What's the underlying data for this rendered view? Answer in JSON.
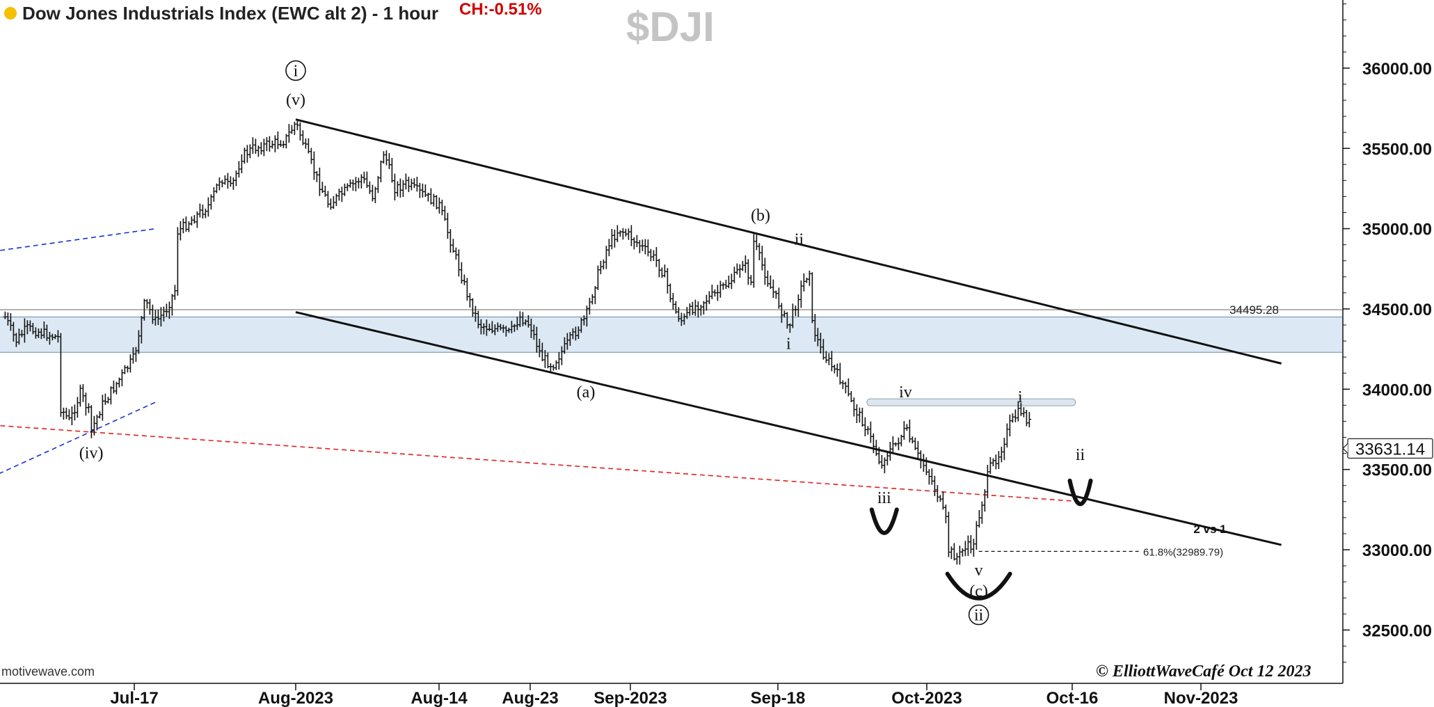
{
  "header": {
    "title": "Dow Jones Industrials Index (EWC alt 2) - 1 hour",
    "change": "CH:-0.51%",
    "symbol": "$DJI",
    "status_color": "#f5c000"
  },
  "footer": {
    "source": "motivewave.com",
    "copyright": "© ElliottWaveCafé Oct 12 2023"
  },
  "chart_data": {
    "type": "ohlc",
    "y_ticks": [
      "32500.00",
      "33000.00",
      "33500.00",
      "34000.00",
      "34500.00",
      "35000.00",
      "35500.00",
      "36000.00"
    ],
    "x_ticks": [
      "Jul-17",
      "Aug-2023",
      "Aug-14",
      "Aug-23",
      "Sep-2023",
      "Sep-18",
      "Oct-2023",
      "Oct-16",
      "Nov-2023"
    ],
    "x_tick_dates": [
      "2023-07-17",
      "2023-08-01",
      "2023-08-14",
      "2023-08-23",
      "2023-09-01",
      "2023-09-18",
      "2023-10-02",
      "2023-10-16",
      "2023-11-01"
    ],
    "last_price": "33631.14",
    "reference_line": {
      "label": "34495.28",
      "value": 34495.28
    },
    "fib_level": {
      "label": "61.8%(32989.79)",
      "value": 32989.79
    },
    "note": "2 vs 1",
    "path": [
      [
        "2023-07-05",
        34450
      ],
      [
        "2023-07-06",
        34300
      ],
      [
        "2023-07-07",
        34380
      ],
      [
        "2023-07-10",
        34320
      ],
      [
        "2023-07-10",
        33900
      ],
      [
        "2023-07-11",
        33800
      ],
      [
        "2023-07-12",
        33980
      ],
      [
        "2023-07-13",
        33820
      ],
      [
        "2023-07-13",
        33740
      ],
      [
        "2023-07-14",
        33900
      ],
      [
        "2023-07-17",
        34200
      ],
      [
        "2023-07-18",
        34550
      ],
      [
        "2023-07-19",
        34420
      ],
      [
        "2023-07-20",
        34500
      ],
      [
        "2023-07-21",
        34650
      ],
      [
        "2023-07-21",
        34980
      ],
      [
        "2023-07-24",
        35150
      ],
      [
        "2023-07-25",
        35320
      ],
      [
        "2023-07-26",
        35250
      ],
      [
        "2023-07-27",
        35450
      ],
      [
        "2023-07-28",
        35500
      ],
      [
        "2023-07-31",
        35550
      ],
      [
        "2023-08-01",
        35660
      ],
      [
        "2023-08-02",
        35480
      ],
      [
        "2023-08-03",
        35300
      ],
      [
        "2023-08-04",
        35150
      ],
      [
        "2023-08-07",
        35320
      ],
      [
        "2023-08-08",
        35200
      ],
      [
        "2023-08-09",
        35480
      ],
      [
        "2023-08-10",
        35250
      ],
      [
        "2023-08-11",
        35280
      ],
      [
        "2023-08-14",
        35150
      ],
      [
        "2023-08-15",
        34950
      ],
      [
        "2023-08-16",
        34750
      ],
      [
        "2023-08-17",
        34550
      ],
      [
        "2023-08-18",
        34400
      ],
      [
        "2023-08-21",
        34350
      ],
      [
        "2023-08-22",
        34450
      ],
      [
        "2023-08-23",
        34400
      ],
      [
        "2023-08-24",
        34200
      ],
      [
        "2023-08-25",
        34150
      ],
      [
        "2023-08-28",
        34450
      ],
      [
        "2023-08-29",
        34700
      ],
      [
        "2023-08-30",
        34900
      ],
      [
        "2023-08-31",
        35000
      ],
      [
        "2023-09-01",
        34950
      ],
      [
        "2023-09-04",
        34800
      ],
      [
        "2023-09-05",
        34700
      ],
      [
        "2023-09-06",
        34500
      ],
      [
        "2023-09-07",
        34420
      ],
      [
        "2023-09-08",
        34500
      ],
      [
        "2023-09-11",
        34600
      ],
      [
        "2023-09-12",
        34650
      ],
      [
        "2023-09-13",
        34700
      ],
      [
        "2023-09-14",
        34800
      ],
      [
        "2023-09-15",
        34650
      ],
      [
        "2023-09-15",
        34950
      ],
      [
        "2023-09-16",
        34800
      ],
      [
        "2023-09-17",
        34650
      ],
      [
        "2023-09-18",
        34550
      ],
      [
        "2023-09-19",
        34380
      ],
      [
        "2023-09-20",
        34600
      ],
      [
        "2023-09-21",
        34750
      ],
      [
        "2023-09-21",
        34450
      ],
      [
        "2023-09-22",
        34250
      ],
      [
        "2023-09-23",
        34150
      ],
      [
        "2023-09-24",
        34050
      ],
      [
        "2023-09-25",
        33900
      ],
      [
        "2023-09-26",
        33800
      ],
      [
        "2023-09-27",
        33650
      ],
      [
        "2023-09-28",
        33480
      ],
      [
        "2023-09-28",
        33580
      ],
      [
        "2023-09-29",
        33650
      ],
      [
        "2023-09-30",
        33750
      ],
      [
        "2023-10-01",
        33600
      ],
      [
        "2023-10-02",
        33500
      ],
      [
        "2023-10-03",
        33350
      ],
      [
        "2023-10-04",
        33150
      ],
      [
        "2023-10-04",
        33000
      ],
      [
        "2023-10-05",
        32950
      ],
      [
        "2023-10-06",
        33050
      ],
      [
        "2023-10-06",
        32900
      ],
      [
        "2023-10-07",
        33200
      ],
      [
        "2023-10-08",
        33500
      ],
      [
        "2023-10-09",
        33600
      ],
      [
        "2023-10-10",
        33780
      ],
      [
        "2023-10-11",
        33870
      ],
      [
        "2023-10-12",
        33780
      ],
      [
        "2023-10-12",
        33620
      ]
    ],
    "wave_labels": [
      {
        "text": "i",
        "circled": true,
        "date": "2023-08-01",
        "price": 35950
      },
      {
        "text": "(v)",
        "date": "2023-08-01",
        "price": 35770
      },
      {
        "text": "(iv)",
        "date": "2023-07-13",
        "price": 33570
      },
      {
        "text": "(a)",
        "date": "2023-08-28",
        "price": 33950
      },
      {
        "text": "(b)",
        "date": "2023-09-16",
        "price": 35050
      },
      {
        "text": "ii",
        "date": "2023-09-20",
        "price": 34900
      },
      {
        "text": "i",
        "date": "2023-09-19",
        "price": 34250
      },
      {
        "text": "iv",
        "date": "2023-09-30",
        "price": 33950
      },
      {
        "text": "iii",
        "date": "2023-09-28",
        "price": 33290
      },
      {
        "text": "v",
        "date": "2023-10-07",
        "price": 32840
      },
      {
        "text": "(c)",
        "date": "2023-10-07",
        "price": 32710
      },
      {
        "text": "ii",
        "circled": true,
        "date": "2023-10-07",
        "price": 32560
      },
      {
        "text": "i",
        "date": "2023-10-11",
        "price": 33920
      },
      {
        "text": "ii",
        "date": "2023-10-17",
        "price": 33560
      }
    ],
    "trend_lines": [
      {
        "name": "channel-upper",
        "from": [
          "2023-08-01",
          35680
        ],
        "to": [
          "2023-11-11",
          34160
        ],
        "style": "solid"
      },
      {
        "name": "channel-lower",
        "from": [
          "2023-08-01",
          34480
        ],
        "to": [
          "2023-11-11",
          33030
        ],
        "style": "solid"
      },
      {
        "name": "red-support",
        "from": [
          "2023-07-03",
          33780
        ],
        "to": [
          "2023-10-17",
          33300
        ],
        "style": "dashed"
      },
      {
        "name": "blue-upper",
        "from": [
          "2023-07-03",
          34850
        ],
        "to": [
          "2023-07-19",
          35000
        ],
        "style": "dashed"
      },
      {
        "name": "blue-lower",
        "from": [
          "2023-07-03",
          33430
        ],
        "to": [
          "2023-07-19",
          33920
        ],
        "style": "dashed"
      }
    ],
    "zones": [
      {
        "name": "support-band",
        "from": 34230,
        "to": 34450
      },
      {
        "name": "resistance-band",
        "from": 33900,
        "to": 33940
      }
    ],
    "colors": {
      "bars": "#111111",
      "support_band": "#dce9f4",
      "red_line": "#e02020",
      "blue_line": "#1a2fd6"
    }
  }
}
